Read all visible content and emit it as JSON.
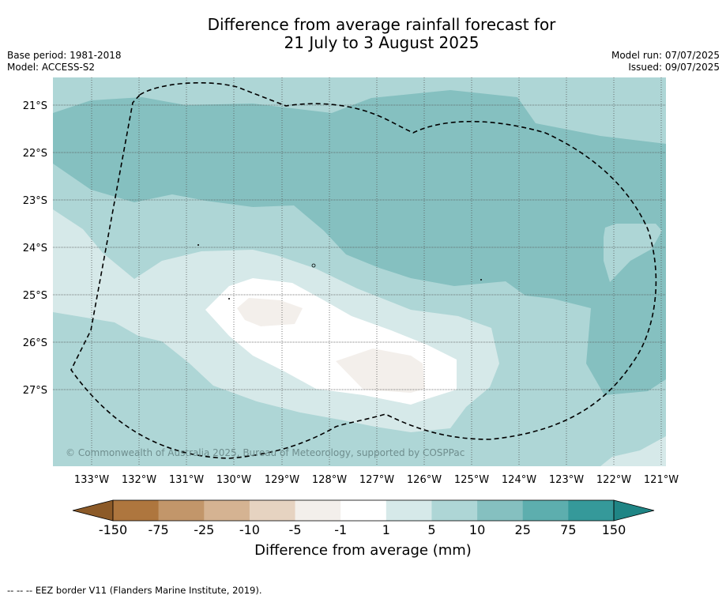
{
  "title": {
    "line1": "Difference from average rainfall forecast for",
    "line2": "21 July to 3 August 2025"
  },
  "meta": {
    "base_period": "Base period: 1981-2018",
    "model": "Model: ACCESS-S2",
    "model_run": "Model run: 07/07/2025",
    "issued": "Issued: 09/07/2025"
  },
  "map": {
    "copyright": "© Commonwealth of Australia 2025, Bureau of Meteorology, supported by COSPPac",
    "lat_labels": [
      "21°S",
      "22°S",
      "23°S",
      "24°S",
      "25°S",
      "26°S",
      "27°S"
    ],
    "lon_labels": [
      "133°W",
      "132°W",
      "131°W",
      "130°W",
      "129°W",
      "128°W",
      "127°W",
      "126°W",
      "125°W",
      "124°W",
      "123°W",
      "122°W",
      "121°W"
    ],
    "eez_border": "dashed black line"
  },
  "colorbar": {
    "labels": [
      "-150",
      "-75",
      "-25",
      "-10",
      "-5",
      "-1",
      "1",
      "5",
      "10",
      "25",
      "75",
      "150"
    ],
    "colors": {
      "below_min": "#8c5a28",
      "bins": [
        "#ae763e",
        "#c2966a",
        "#d5b392",
        "#e6d3c1",
        "#f3efeb",
        "#ffffff",
        "#d6e9e9",
        "#aed6d6",
        "#85c0c0",
        "#5daeae",
        "#35999a"
      ],
      "above_max": "#1f8585"
    },
    "title": "Difference from average (mm)"
  },
  "footer": "--  --  -- EEZ border V11 (Flanders Marine Institute, 2019)."
}
